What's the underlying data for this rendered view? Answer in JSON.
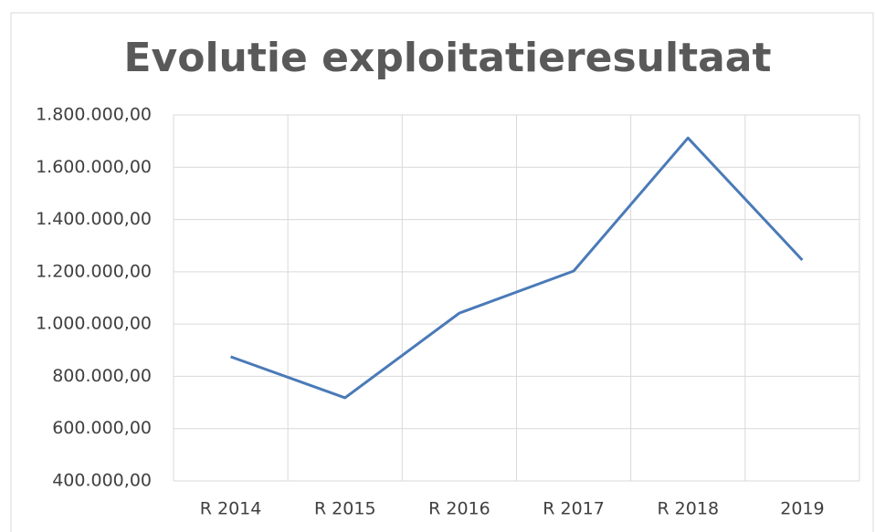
{
  "chart_data": {
    "type": "line",
    "title": "Evolutie exploitatieresultaat",
    "categories": [
      "R 2014",
      "R 2015",
      "R 2016",
      "R 2017",
      "R 2018",
      "2019"
    ],
    "series": [
      {
        "name": "Exploitatieresultaat",
        "color": "#4a7ab8",
        "values": [
          875000,
          718000,
          1042000,
          1203000,
          1712000,
          1245000
        ]
      }
    ],
    "ylim": [
      400000,
      1800000
    ],
    "yticks": [
      {
        "value": 400000,
        "label": "400.000,00"
      },
      {
        "value": 600000,
        "label": "600.000,00"
      },
      {
        "value": 800000,
        "label": "800.000,00"
      },
      {
        "value": 1000000,
        "label": "1.000.000,00"
      },
      {
        "value": 1200000,
        "label": "1.200.000,00"
      },
      {
        "value": 1400000,
        "label": "1.400.000,00"
      },
      {
        "value": 1600000,
        "label": "1.600.000,00"
      },
      {
        "value": 1800000,
        "label": "1.800.000,00"
      }
    ],
    "grid": true,
    "legend": false
  }
}
